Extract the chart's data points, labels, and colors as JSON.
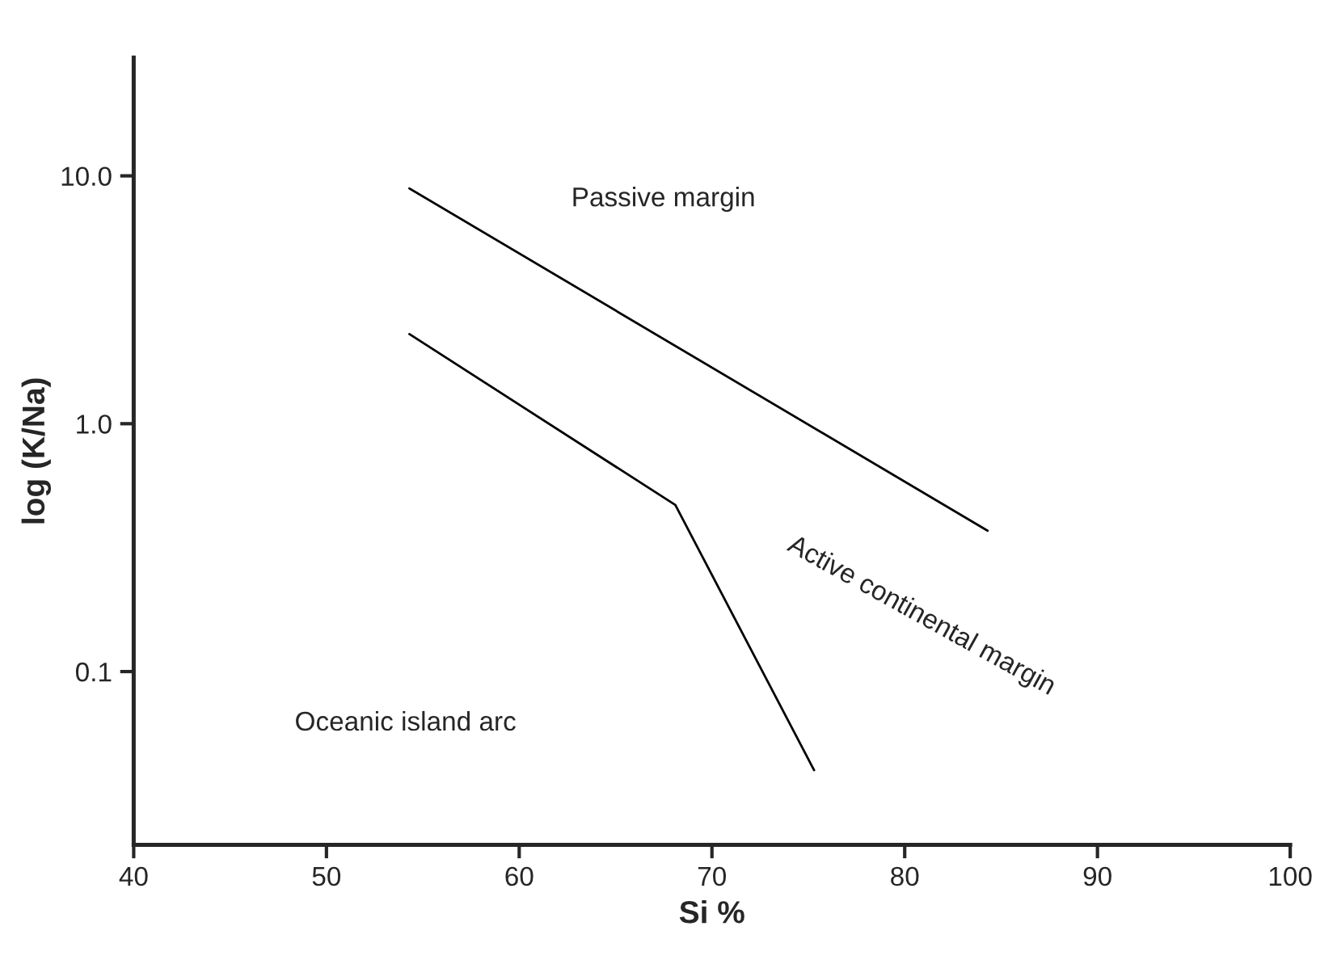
{
  "chart_data": {
    "type": "line",
    "xlabel": "Si %",
    "ylabel": "log (K/Na)",
    "log": "y",
    "grid": false,
    "legend": false,
    "marker": "none",
    "line_style": "solid",
    "xlim": [
      40,
      100
    ],
    "ylim": [
      0.02,
      30
    ],
    "xticks": [
      40,
      50,
      60,
      70,
      80,
      90,
      100
    ],
    "yticks": [
      {
        "value": 0.1,
        "label": "0.1"
      },
      {
        "value": 1,
        "label": "1.0"
      },
      {
        "value": 10,
        "label": "10.0"
      }
    ],
    "series": [
      {
        "color": "#000000",
        "x": [
          54.3,
          84.3
        ],
        "values": [
          8.9,
          0.37
        ]
      },
      {
        "color": "#000000",
        "x": [
          54.3,
          68.1,
          75.3
        ],
        "values": [
          2.3,
          0.47,
          0.04
        ]
      }
    ],
    "annotations": [
      "Passive margin",
      "Active continental margin",
      "Oceanic island arc"
    ]
  }
}
